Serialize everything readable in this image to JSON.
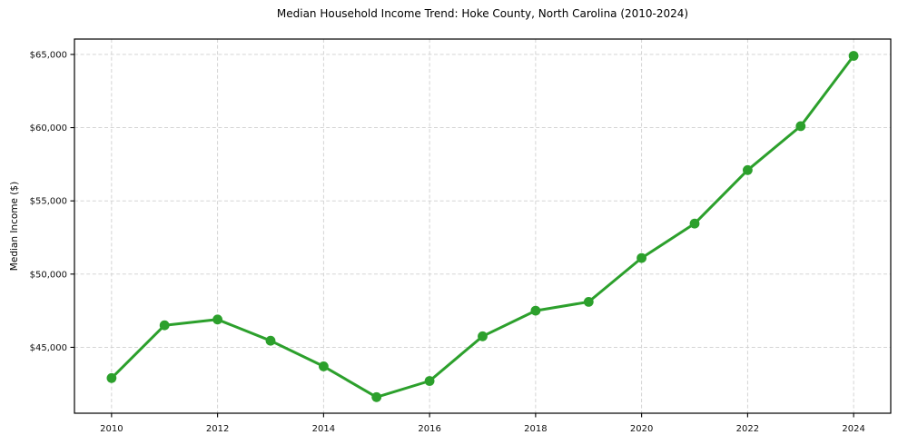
{
  "chart_data": {
    "type": "line",
    "title": "Median Household Income Trend: Hoke County, North Carolina (2010-2024)",
    "xlabel": "",
    "ylabel": "Median Income ($)",
    "series_name": "Median Household Income",
    "x": [
      2010,
      2011,
      2012,
      2013,
      2014,
      2015,
      2016,
      2017,
      2018,
      2019,
      2020,
      2021,
      2022,
      2023,
      2024
    ],
    "values": [
      42900,
      46500,
      46900,
      45450,
      43700,
      41600,
      42700,
      45750,
      47500,
      48100,
      51100,
      53450,
      57100,
      60100,
      64900
    ],
    "xlim": [
      2009.3,
      2024.7
    ],
    "ylim": [
      40500,
      66050
    ],
    "xticks": {
      "values": [
        2010,
        2012,
        2014,
        2016,
        2018,
        2020,
        2022,
        2024
      ],
      "labels": [
        "2010",
        "2012",
        "2014",
        "2016",
        "2018",
        "2020",
        "2022",
        "2024"
      ]
    },
    "yticks": {
      "values": [
        45000,
        50000,
        55000,
        60000,
        65000
      ],
      "labels": [
        "$45,000",
        "$50,000",
        "$55,000",
        "$60,000",
        "$65,000"
      ]
    },
    "line_color": "#2ca02c",
    "marker": "circle",
    "grid": true,
    "grid_color": "#cfcfcf",
    "grid_style": "dashed",
    "spine_color": "#000000",
    "tick_label_color": "#111111",
    "legend": "none"
  }
}
